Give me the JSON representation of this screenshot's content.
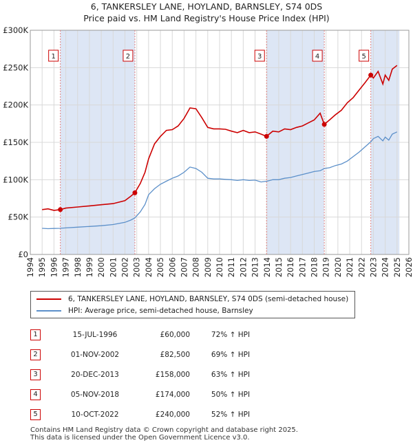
{
  "titles": {
    "line1": "6, TANKERSLEY LANE, HOYLAND, BARNSLEY, S74 0DS",
    "line2": "Price paid vs. HM Land Registry's House Price Index (HPI)"
  },
  "colors": {
    "price": "#cc0000",
    "hpi": "#5b8fc9",
    "shade": "#dde6f5",
    "marker_line": "#e08080"
  },
  "chart_data": {
    "type": "line",
    "title": "Price paid vs. HM Land Registry's House Price Index (HPI)",
    "xlabel": "",
    "ylabel": "",
    "xlim": [
      1994,
      2026
    ],
    "ylim": [
      0,
      300000
    ],
    "x_ticks": [
      "1994",
      "1995",
      "1996",
      "1997",
      "1998",
      "1999",
      "2000",
      "2001",
      "2002",
      "2003",
      "2004",
      "2005",
      "2006",
      "2007",
      "2008",
      "2009",
      "2010",
      "2011",
      "2012",
      "2013",
      "2014",
      "2015",
      "2016",
      "2017",
      "2018",
      "2019",
      "2020",
      "2021",
      "2022",
      "2023",
      "2024",
      "2025",
      "2026"
    ],
    "y_ticks": [
      {
        "value": 0,
        "label": "£0"
      },
      {
        "value": 50000,
        "label": "£50K"
      },
      {
        "value": 100000,
        "label": "£100K"
      },
      {
        "value": 150000,
        "label": "£150K"
      },
      {
        "value": 200000,
        "label": "£200K"
      },
      {
        "value": 250000,
        "label": "£250K"
      },
      {
        "value": 300000,
        "label": "£300K"
      }
    ],
    "grid": true,
    "series": [
      {
        "name": "6, TANKERSLEY LANE, HOYLAND, BARNSLEY, S74 0DS (semi-detached house)",
        "x": [
          1995.0,
          1995.5,
          1996.0,
          1996.54,
          1997.0,
          1998.0,
          1999.0,
          2000.0,
          2001.0,
          2002.0,
          2002.5,
          2002.84,
          2003.3,
          2003.7,
          2004.0,
          2004.5,
          2005.0,
          2005.5,
          2006.0,
          2006.5,
          2007.0,
          2007.5,
          2008.0,
          2008.5,
          2009.0,
          2009.5,
          2010.0,
          2010.5,
          2011.0,
          2011.5,
          2012.0,
          2012.5,
          2013.0,
          2013.5,
          2013.97,
          2014.5,
          2015.0,
          2015.5,
          2016.0,
          2016.5,
          2017.0,
          2017.5,
          2018.0,
          2018.5,
          2018.85,
          2019.3,
          2019.8,
          2020.3,
          2020.8,
          2021.3,
          2021.8,
          2022.3,
          2022.78,
          2023.0,
          2023.4,
          2023.8,
          2024.0,
          2024.3,
          2024.6,
          2025.0
        ],
        "values": [
          60000,
          61000,
          59000,
          60000,
          62000,
          63500,
          65000,
          66500,
          68000,
          72000,
          78000,
          82500,
          95000,
          110000,
          128000,
          148000,
          158000,
          166000,
          167000,
          172000,
          182000,
          196000,
          195000,
          183000,
          170000,
          168000,
          168000,
          167500,
          165000,
          163000,
          166000,
          163000,
          164000,
          161000,
          158000,
          165000,
          164000,
          168000,
          167000,
          170000,
          172000,
          176000,
          180000,
          189000,
          174000,
          180000,
          187000,
          193000,
          203000,
          210000,
          220000,
          230000,
          240000,
          236000,
          245000,
          228000,
          240000,
          233000,
          248000,
          253000
        ]
      },
      {
        "name": "HPI: Average price, semi-detached house, Barnsley",
        "x": [
          1995.0,
          1995.5,
          1996.0,
          1996.5,
          1997.0,
          1998.0,
          1999.0,
          2000.0,
          2001.0,
          2002.0,
          2002.5,
          2002.84,
          2003.3,
          2003.7,
          2004.0,
          2004.5,
          2005.0,
          2005.5,
          2006.0,
          2006.5,
          2007.0,
          2007.5,
          2008.0,
          2008.5,
          2009.0,
          2009.5,
          2010.0,
          2010.5,
          2011.0,
          2011.5,
          2012.0,
          2012.5,
          2013.0,
          2013.5,
          2014.0,
          2014.5,
          2015.0,
          2015.5,
          2016.0,
          2016.5,
          2017.0,
          2017.5,
          2018.0,
          2018.5,
          2018.85,
          2019.3,
          2019.8,
          2020.3,
          2020.8,
          2021.3,
          2021.8,
          2022.3,
          2022.8,
          2023.0,
          2023.4,
          2023.8,
          2024.0,
          2024.3,
          2024.6,
          2025.0
        ],
        "values": [
          35000,
          34500,
          34800,
          35000,
          35500,
          36500,
          37500,
          38500,
          40000,
          43000,
          46000,
          49000,
          57000,
          67000,
          80000,
          88000,
          94000,
          98000,
          102000,
          105000,
          110000,
          117000,
          115000,
          110000,
          102000,
          101000,
          101000,
          100500,
          100000,
          99000,
          100000,
          99000,
          99500,
          97000,
          98000,
          100000,
          100000,
          102000,
          103000,
          105000,
          107000,
          109000,
          111000,
          112000,
          115000,
          116000,
          119000,
          121000,
          125000,
          131000,
          137000,
          144000,
          151000,
          155000,
          158000,
          152000,
          157000,
          153000,
          161000,
          164000
        ]
      }
    ],
    "sales": [
      {
        "n": "1",
        "x": 1996.54,
        "price": 60000
      },
      {
        "n": "2",
        "x": 2002.84,
        "price": 82500
      },
      {
        "n": "3",
        "x": 2013.97,
        "price": 158000
      },
      {
        "n": "4",
        "x": 2018.85,
        "price": 174000
      },
      {
        "n": "5",
        "x": 2022.78,
        "price": 240000
      }
    ],
    "shaded_ranges": [
      [
        1996.54,
        2002.84
      ],
      [
        2013.97,
        2018.85
      ],
      [
        2022.78,
        2025.2
      ]
    ]
  },
  "legend": {
    "price_label": "6, TANKERSLEY LANE, HOYLAND, BARNSLEY, S74 0DS (semi-detached house)",
    "hpi_label": "HPI: Average price, semi-detached house, Barnsley"
  },
  "table": [
    {
      "n": "1",
      "date": "15-JUL-1996",
      "price": "£60,000",
      "hpi": "72% ↑ HPI"
    },
    {
      "n": "2",
      "date": "01-NOV-2002",
      "price": "£82,500",
      "hpi": "69% ↑ HPI"
    },
    {
      "n": "3",
      "date": "20-DEC-2013",
      "price": "£158,000",
      "hpi": "63% ↑ HPI"
    },
    {
      "n": "4",
      "date": "05-NOV-2018",
      "price": "£174,000",
      "hpi": "50% ↑ HPI"
    },
    {
      "n": "5",
      "date": "10-OCT-2022",
      "price": "£240,000",
      "hpi": "52% ↑ HPI"
    }
  ],
  "footer": {
    "line1": "Contains HM Land Registry data © Crown copyright and database right 2025.",
    "line2": "This data is licensed under the Open Government Licence v3.0."
  }
}
